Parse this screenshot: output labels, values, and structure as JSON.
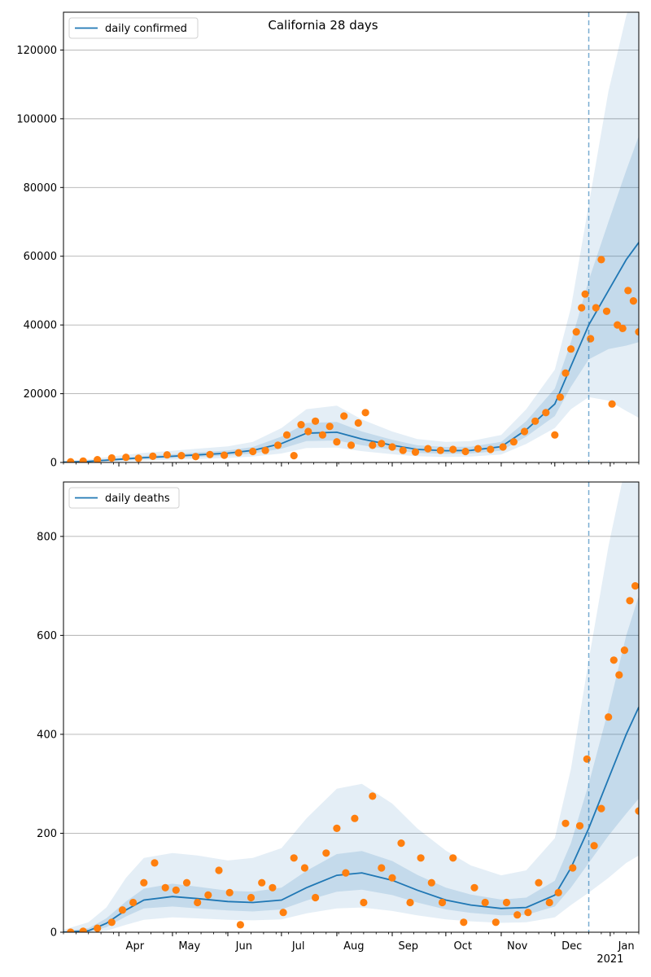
{
  "title": "California 28 days",
  "colors": {
    "line": "#1f77b4",
    "points": "#ff7f0e",
    "band": "#1f77b4",
    "grid": "#b0b0b0",
    "forecast_line": "#1f77b4"
  },
  "x_axis": {
    "months": [
      "Apr",
      "May",
      "Jun",
      "Jul",
      "Aug",
      "Sep",
      "Oct",
      "Nov",
      "Dec",
      "Jan"
    ],
    "year_label": "2021"
  },
  "chart_data": [
    {
      "type": "scatter",
      "title": "California 28 days",
      "legend": "daily confirmed",
      "legend_position": "upper-left",
      "grid": "horizontal",
      "x_range": [
        "2020-03-01",
        "2021-01-17"
      ],
      "forecast_start": "2020-12-20",
      "ylim": [
        0,
        131000
      ],
      "yticks": [
        "0",
        "20000",
        "40000",
        "60000",
        "80000",
        "100000",
        "120000"
      ],
      "ytick_values": [
        0,
        20000,
        40000,
        60000,
        80000,
        100000,
        120000
      ],
      "series": [
        {
          "name": "daily confirmed",
          "x": [
            "2020-03-01",
            "2020-03-15",
            "2020-04-01",
            "2020-04-15",
            "2020-05-01",
            "2020-05-15",
            "2020-06-01",
            "2020-06-15",
            "2020-07-01",
            "2020-07-15",
            "2020-08-01",
            "2020-08-15",
            "2020-09-01",
            "2020-09-15",
            "2020-10-01",
            "2020-10-15",
            "2020-11-01",
            "2020-11-15",
            "2020-12-01",
            "2020-12-10",
            "2020-12-20",
            "2020-12-31",
            "2021-01-10",
            "2021-01-17"
          ],
          "mean": [
            100,
            300,
            900,
            1400,
            1800,
            2200,
            2700,
            3500,
            5500,
            8500,
            8800,
            6800,
            5000,
            3800,
            3400,
            3500,
            4600,
            9500,
            17000,
            28000,
            40000,
            50000,
            59000,
            64000
          ],
          "band_inner": [
            [
              50,
              200
            ],
            [
              150,
              500
            ],
            [
              600,
              1300
            ],
            [
              1000,
              1900
            ],
            [
              1300,
              2400
            ],
            [
              1600,
              2900
            ],
            [
              2000,
              3500
            ],
            [
              2600,
              4500
            ],
            [
              4000,
              7500
            ],
            [
              6200,
              11500
            ],
            [
              6400,
              11800
            ],
            [
              5000,
              9000
            ],
            [
              3700,
              6600
            ],
            [
              2800,
              5000
            ],
            [
              2500,
              4500
            ],
            [
              2600,
              4600
            ],
            [
              3400,
              6000
            ],
            [
              7500,
              12000
            ],
            [
              13500,
              21500
            ],
            [
              22000,
              35000
            ],
            [
              30000,
              53000
            ],
            [
              33000,
              70000
            ],
            [
              34000,
              85000
            ],
            [
              35000,
              95000
            ]
          ],
          "band_outer": [
            [
              0,
              400
            ],
            [
              0,
              900
            ],
            [
              200,
              2000
            ],
            [
              500,
              2800
            ],
            [
              800,
              3400
            ],
            [
              1000,
              4000
            ],
            [
              1300,
              4700
            ],
            [
              1700,
              6000
            ],
            [
              2600,
              10000
            ],
            [
              4200,
              15500
            ],
            [
              4300,
              16500
            ],
            [
              3300,
              12500
            ],
            [
              2400,
              9000
            ],
            [
              1800,
              6800
            ],
            [
              1600,
              6000
            ],
            [
              1700,
              6200
            ],
            [
              2300,
              8000
            ],
            [
              5400,
              15500
            ],
            [
              10000,
              27000
            ],
            [
              15500,
              45000
            ],
            [
              19000,
              75000
            ],
            [
              18000,
              108000
            ],
            [
              15000,
              130000
            ],
            [
              13000,
              140000
            ]
          ],
          "observed_x": [
            "2020-03-05",
            "2020-03-12",
            "2020-03-20",
            "2020-03-28",
            "2020-04-05",
            "2020-04-12",
            "2020-04-20",
            "2020-04-28",
            "2020-05-06",
            "2020-05-14",
            "2020-05-22",
            "2020-05-30",
            "2020-06-07",
            "2020-06-15",
            "2020-06-22",
            "2020-06-29",
            "2020-07-04",
            "2020-07-08",
            "2020-07-12",
            "2020-07-16",
            "2020-07-20",
            "2020-07-24",
            "2020-07-28",
            "2020-08-01",
            "2020-08-05",
            "2020-08-09",
            "2020-08-13",
            "2020-08-17",
            "2020-08-21",
            "2020-08-26",
            "2020-09-01",
            "2020-09-07",
            "2020-09-14",
            "2020-09-21",
            "2020-09-28",
            "2020-10-05",
            "2020-10-12",
            "2020-10-19",
            "2020-10-26",
            "2020-11-02",
            "2020-11-08",
            "2020-11-14",
            "2020-11-20",
            "2020-11-26",
            "2020-12-01",
            "2020-12-04",
            "2020-12-07",
            "2020-12-10",
            "2020-12-13",
            "2020-12-16",
            "2020-12-18",
            "2020-12-21",
            "2020-12-24",
            "2020-12-27",
            "2020-12-30",
            "2021-01-02",
            "2021-01-05",
            "2021-01-08",
            "2021-01-11",
            "2021-01-14",
            "2021-01-17"
          ],
          "observed_y": [
            200,
            400,
            800,
            1300,
            1500,
            1200,
            1800,
            2200,
            2000,
            1700,
            2300,
            2100,
            2800,
            3200,
            3500,
            5000,
            8000,
            2000,
            11000,
            9000,
            12000,
            8000,
            10500,
            6000,
            13500,
            5000,
            11500,
            14500,
            5000,
            5500,
            4500,
            3500,
            3000,
            4000,
            3500,
            3800,
            3200,
            4000,
            3800,
            4500,
            6000,
            9000,
            12000,
            14500,
            8000,
            19000,
            26000,
            33000,
            38000,
            45000,
            49000,
            36000,
            45000,
            59000,
            44000,
            17000,
            40000,
            39000,
            50000,
            47000,
            38000
          ]
        }
      ]
    },
    {
      "type": "scatter",
      "legend": "daily deaths",
      "legend_position": "upper-left",
      "grid": "horizontal",
      "x_range": [
        "2020-03-01",
        "2021-01-17"
      ],
      "forecast_start": "2020-12-20",
      "ylim": [
        0,
        910
      ],
      "yticks": [
        "0",
        "200",
        "400",
        "600",
        "800"
      ],
      "ytick_values": [
        0,
        200,
        400,
        600,
        800
      ],
      "series": [
        {
          "name": "daily deaths",
          "x": [
            "2020-03-01",
            "2020-03-15",
            "2020-03-25",
            "2020-04-05",
            "2020-04-15",
            "2020-05-01",
            "2020-05-15",
            "2020-06-01",
            "2020-06-15",
            "2020-07-01",
            "2020-07-15",
            "2020-08-01",
            "2020-08-15",
            "2020-09-01",
            "2020-09-15",
            "2020-10-01",
            "2020-10-15",
            "2020-11-01",
            "2020-11-15",
            "2020-12-01",
            "2020-12-10",
            "2020-12-20",
            "2020-12-31",
            "2021-01-10",
            "2021-01-17"
          ],
          "mean": [
            0,
            3,
            18,
            45,
            65,
            72,
            68,
            62,
            60,
            65,
            90,
            115,
            120,
            105,
            85,
            65,
            55,
            48,
            50,
            75,
            130,
            210,
            310,
            400,
            455
          ],
          "band_inner": [
            [
              0,
              2
            ],
            [
              0,
              8
            ],
            [
              10,
              28
            ],
            [
              32,
              62
            ],
            [
              48,
              88
            ],
            [
              52,
              98
            ],
            [
              48,
              92
            ],
            [
              44,
              84
            ],
            [
              42,
              82
            ],
            [
              46,
              90
            ],
            [
              64,
              124
            ],
            [
              82,
              158
            ],
            [
              86,
              164
            ],
            [
              75,
              144
            ],
            [
              60,
              116
            ],
            [
              46,
              90
            ],
            [
              39,
              76
            ],
            [
              34,
              66
            ],
            [
              35,
              70
            ],
            [
              52,
              104
            ],
            [
              90,
              180
            ],
            [
              140,
              300
            ],
            [
              195,
              450
            ],
            [
              240,
              600
            ],
            [
              270,
              680
            ]
          ],
          "band_outer": [
            [
              0,
              5
            ],
            [
              0,
              20
            ],
            [
              3,
              50
            ],
            [
              15,
              110
            ],
            [
              25,
              150
            ],
            [
              30,
              160
            ],
            [
              28,
              155
            ],
            [
              25,
              145
            ],
            [
              24,
              150
            ],
            [
              26,
              170
            ],
            [
              38,
              230
            ],
            [
              48,
              290
            ],
            [
              50,
              300
            ],
            [
              43,
              260
            ],
            [
              34,
              210
            ],
            [
              26,
              165
            ],
            [
              22,
              135
            ],
            [
              19,
              115
            ],
            [
              20,
              125
            ],
            [
              30,
              190
            ],
            [
              55,
              330
            ],
            [
              80,
              550
            ],
            [
              110,
              780
            ],
            [
              140,
              950
            ],
            [
              155,
              1050
            ]
          ],
          "observed_x": [
            "2020-03-05",
            "2020-03-12",
            "2020-03-20",
            "2020-03-28",
            "2020-04-03",
            "2020-04-09",
            "2020-04-15",
            "2020-04-21",
            "2020-04-27",
            "2020-05-03",
            "2020-05-09",
            "2020-05-15",
            "2020-05-21",
            "2020-05-27",
            "2020-06-02",
            "2020-06-08",
            "2020-06-14",
            "2020-06-20",
            "2020-06-26",
            "2020-07-02",
            "2020-07-08",
            "2020-07-14",
            "2020-07-20",
            "2020-07-26",
            "2020-08-01",
            "2020-08-06",
            "2020-08-11",
            "2020-08-16",
            "2020-08-21",
            "2020-08-26",
            "2020-09-01",
            "2020-09-06",
            "2020-09-11",
            "2020-09-17",
            "2020-09-23",
            "2020-09-29",
            "2020-10-05",
            "2020-10-11",
            "2020-10-17",
            "2020-10-23",
            "2020-10-29",
            "2020-11-04",
            "2020-11-10",
            "2020-11-16",
            "2020-11-22",
            "2020-11-28",
            "2020-12-03",
            "2020-12-07",
            "2020-12-11",
            "2020-12-15",
            "2020-12-19",
            "2020-12-23",
            "2020-12-27",
            "2020-12-31",
            "2021-01-03",
            "2021-01-06",
            "2021-01-09",
            "2021-01-12",
            "2021-01-15",
            "2021-01-17"
          ],
          "observed_y": [
            0,
            2,
            8,
            20,
            45,
            60,
            100,
            140,
            90,
            85,
            100,
            60,
            75,
            125,
            80,
            15,
            70,
            100,
            90,
            40,
            150,
            130,
            70,
            160,
            210,
            120,
            230,
            60,
            275,
            130,
            110,
            180,
            60,
            150,
            100,
            60,
            150,
            20,
            90,
            60,
            20,
            60,
            35,
            40,
            100,
            60,
            80,
            220,
            130,
            215,
            350,
            175,
            250,
            435,
            550,
            520,
            570,
            670,
            700,
            245
          ]
        }
      ]
    }
  ]
}
